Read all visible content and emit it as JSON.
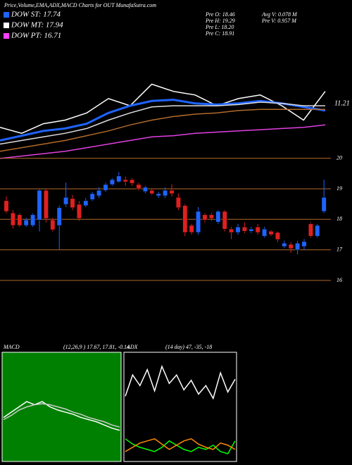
{
  "header": {
    "title": "Price,Volume,EMA,ADX,MACD Charts for OUT MunafaSutra.com",
    "legend": [
      {
        "label": "DOW ST: 17.74",
        "color": "#1e64ff"
      },
      {
        "label": "DOW MT: 17.94",
        "color": "#ffffff"
      },
      {
        "label": "DOW PT: 16.71",
        "color": "#ff40ff"
      }
    ],
    "stats": [
      "Pre O: 18.46",
      "Pre H: 19.29",
      "Pre L: 18.20",
      "Pre C: 18.91",
      "Avg V: 0.078 M",
      "Pre V: 0.957 M"
    ]
  },
  "chart_data": [
    {
      "type": "line",
      "annotation": "11.21",
      "ylim": [
        0,
        100
      ],
      "series": [
        {
          "name": "price",
          "color": "#ffffff",
          "values": [
            29,
            24,
            32,
            35,
            41,
            53,
            47,
            65,
            59,
            56,
            47,
            53,
            56,
            47,
            35,
            59
          ]
        },
        {
          "name": "EMA short",
          "color": "#1e64ff",
          "values": [
            18,
            22,
            26,
            28,
            32,
            41,
            47,
            51,
            52,
            49,
            48,
            49,
            51,
            49,
            46,
            43
          ]
        },
        {
          "name": "EMA mid",
          "color": "#dddddd",
          "values": [
            15,
            18,
            21,
            24,
            28,
            35,
            41,
            46,
            47,
            47,
            47,
            48,
            50,
            49,
            47,
            47
          ]
        },
        {
          "name": "EMA long",
          "color": "#b06a2a",
          "values": [
            9,
            12,
            15,
            18,
            22,
            26,
            31,
            35,
            38,
            40,
            41,
            43,
            44,
            44,
            44,
            44
          ]
        },
        {
          "name": "EMA very long",
          "color": "#e040e0",
          "values": [
            3,
            5,
            7,
            9,
            12,
            15,
            18,
            21,
            22,
            24,
            25,
            26,
            27,
            28,
            29,
            31
          ]
        }
      ]
    },
    {
      "type": "candlestick",
      "ylim": [
        15.5,
        20.5
      ],
      "yticks": [
        20,
        19,
        18,
        17,
        16
      ],
      "open": [
        18.61,
        18.21,
        18.15,
        17.8,
        17.8,
        17.98,
        18.95,
        17.98,
        17.8,
        18.49,
        18.68,
        18.49,
        18.45,
        18.65,
        18.77,
        18.95,
        19.14,
        19.23,
        19.3,
        19.3,
        19.14,
        18.91,
        18.95,
        18.77,
        18.77,
        18.95,
        18.72,
        18.45,
        17.8,
        17.57,
        18.15,
        18.15,
        17.91,
        18.26,
        17.68,
        17.57,
        17.75,
        17.61,
        17.75,
        17.45,
        17.61,
        17.57,
        17.11,
        17.18,
        17.0,
        17.11,
        17.85,
        17.45,
        18.26
      ],
      "high": [
        18.75,
        18.3,
        18.2,
        18.05,
        18.2,
        19.0,
        19.0,
        18.05,
        18.45,
        19.2,
        18.8,
        18.6,
        18.7,
        18.9,
        19.05,
        19.2,
        19.35,
        19.55,
        19.4,
        19.35,
        19.2,
        19.1,
        19.0,
        18.9,
        19.05,
        19.15,
        18.85,
        18.5,
        17.85,
        18.4,
        18.2,
        18.2,
        18.3,
        18.3,
        17.75,
        17.85,
        17.9,
        17.75,
        17.85,
        17.75,
        17.65,
        17.6,
        17.3,
        17.25,
        17.3,
        17.35,
        17.9,
        17.85,
        19.3
      ],
      "low": [
        18.2,
        17.7,
        17.75,
        17.75,
        17.75,
        17.6,
        17.9,
        17.6,
        16.99,
        18.4,
        18.3,
        17.95,
        18.4,
        18.6,
        18.7,
        18.9,
        19.1,
        19.2,
        19.1,
        19.1,
        18.95,
        18.85,
        18.8,
        18.7,
        18.7,
        18.75,
        18.3,
        17.45,
        17.5,
        17.5,
        17.9,
        17.95,
        17.85,
        17.6,
        17.35,
        17.5,
        17.55,
        17.55,
        17.5,
        17.4,
        17.45,
        17.25,
        17.05,
        16.9,
        16.85,
        17.0,
        17.4,
        17.4,
        18.2
      ],
      "close": [
        18.26,
        17.8,
        17.8,
        17.98,
        18.15,
        18.95,
        18.03,
        17.66,
        18.38,
        18.72,
        18.38,
        18.03,
        18.61,
        18.84,
        18.95,
        19.14,
        19.3,
        19.42,
        19.23,
        19.18,
        19.0,
        19.05,
        18.84,
        18.84,
        18.95,
        18.84,
        18.38,
        17.57,
        17.57,
        18.26,
        17.98,
        18.03,
        18.26,
        17.68,
        17.57,
        17.75,
        17.61,
        17.68,
        17.57,
        17.68,
        17.5,
        17.34,
        17.22,
        17.04,
        17.22,
        17.27,
        17.45,
        17.8,
        18.72
      ],
      "up_color": "#1e64ff",
      "down_color": "#e02020",
      "grid_color": "#b06a2a"
    },
    {
      "type": "line",
      "title": "MACD",
      "subtitle": "(12,26,9 ) 17.67, 17.81, -0.14",
      "ylim": [
        0,
        100
      ],
      "background": "#008000",
      "series": [
        {
          "name": "MACD",
          "color": "#ffffff",
          "values": [
            40,
            45,
            50,
            55,
            52,
            55,
            50,
            47,
            45,
            43,
            40,
            38,
            36,
            33,
            30,
            28
          ]
        },
        {
          "name": "signal",
          "color": "#cccccc",
          "values": [
            38,
            42,
            47,
            50,
            52,
            53,
            52,
            50,
            48,
            45,
            43,
            40,
            38,
            36,
            33,
            31
          ]
        }
      ]
    },
    {
      "type": "line",
      "title": "ADX",
      "subtitle": "(14 day) 47, -35, -18",
      "ylim": [
        0,
        100
      ],
      "background": "#000000",
      "series": [
        {
          "name": "ADX",
          "color": "#ffffff",
          "values": [
            60,
            80,
            70,
            85,
            65,
            88,
            72,
            80,
            66,
            75,
            62,
            70,
            58,
            82,
            64,
            76
          ]
        },
        {
          "name": "+DI",
          "color": "#00ff00",
          "values": [
            20,
            15,
            12,
            10,
            8,
            12,
            18,
            14,
            10,
            8,
            12,
            10,
            14,
            8,
            6,
            18
          ]
        },
        {
          "name": "-DI",
          "color": "#ff8c00",
          "values": [
            8,
            12,
            16,
            18,
            20,
            15,
            10,
            14,
            18,
            20,
            15,
            12,
            10,
            16,
            14,
            10
          ]
        }
      ]
    }
  ]
}
